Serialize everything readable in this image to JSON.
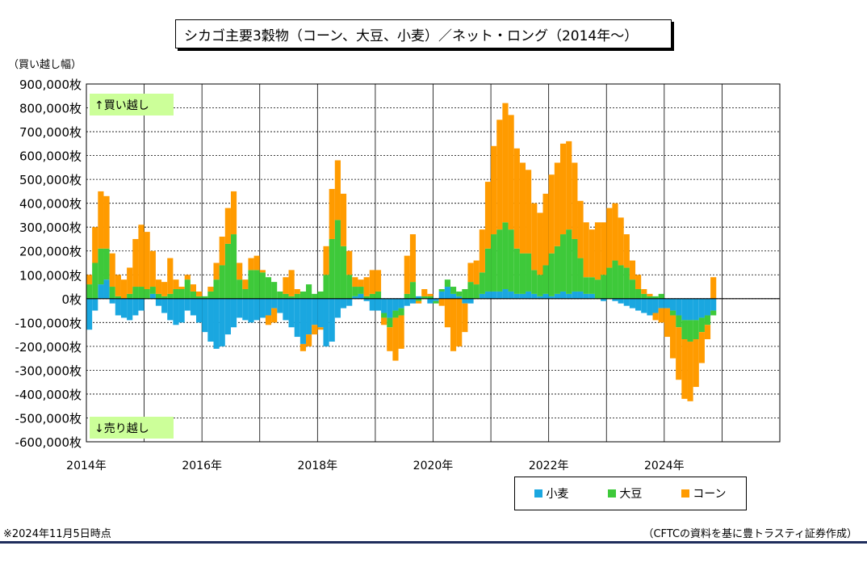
{
  "title": "シカゴ主要3穀物（コーン、大豆、小麦）／ネット・ロング（2014年～）",
  "footnote": "※2024年11月5日時点",
  "source": "（CFTCの資料を基に豊トラスティ証券作成）",
  "colors": {
    "wheat": "#1aa7e0",
    "soy": "#3ec93a",
    "corn": "#ff9b00",
    "annotation_bg": "#ccff99"
  },
  "chart_data": {
    "type": "area",
    "ylabel": "（買い越し幅）",
    "ylim": [
      -600000,
      900000
    ],
    "xlim": [
      2014.0,
      2026.0
    ],
    "yticks": [
      900000,
      800000,
      700000,
      600000,
      500000,
      400000,
      300000,
      200000,
      100000,
      0,
      -100000,
      -200000,
      -300000,
      -400000,
      -500000,
      -600000
    ],
    "ytick_labels": [
      "900,000枚",
      "800,000枚",
      "700,000枚",
      "600,000枚",
      "500,000枚",
      "400,000枚",
      "300,000枚",
      "200,000枚",
      "100,000枚",
      "0枚",
      "-100,000枚",
      "-200,000枚",
      "-300,000枚",
      "-400,000枚",
      "-500,000枚",
      "-600,000枚"
    ],
    "xticks": [
      2014,
      2016,
      2018,
      2020,
      2022,
      2024
    ],
    "xtick_labels": [
      "2014年",
      "2016年",
      "2018年",
      "2020年",
      "2022年",
      "2024年"
    ],
    "grid": true,
    "legend_position": "bottom-right",
    "annotations": [
      "↑買い越し",
      "↓売り越し"
    ],
    "x": [
      2014.0,
      2014.1,
      2014.2,
      2014.3,
      2014.4,
      2014.5,
      2014.6,
      2014.7,
      2014.8,
      2014.9,
      2015.0,
      2015.1,
      2015.2,
      2015.3,
      2015.4,
      2015.5,
      2015.6,
      2015.7,
      2015.8,
      2015.9,
      2016.0,
      2016.1,
      2016.2,
      2016.3,
      2016.4,
      2016.5,
      2016.6,
      2016.7,
      2016.8,
      2016.9,
      2017.0,
      2017.1,
      2017.2,
      2017.3,
      2017.4,
      2017.5,
      2017.6,
      2017.7,
      2017.8,
      2017.9,
      2018.0,
      2018.1,
      2018.2,
      2018.3,
      2018.4,
      2018.5,
      2018.6,
      2018.7,
      2018.8,
      2018.9,
      2019.0,
      2019.1,
      2019.2,
      2019.3,
      2019.4,
      2019.5,
      2019.6,
      2019.7,
      2019.8,
      2019.9,
      2020.0,
      2020.1,
      2020.2,
      2020.3,
      2020.4,
      2020.5,
      2020.6,
      2020.7,
      2020.8,
      2020.9,
      2021.0,
      2021.1,
      2021.2,
      2021.3,
      2021.4,
      2021.5,
      2021.6,
      2021.7,
      2021.8,
      2021.9,
      2022.0,
      2022.1,
      2022.2,
      2022.3,
      2022.4,
      2022.5,
      2022.6,
      2022.7,
      2022.8,
      2022.9,
      2023.0,
      2023.1,
      2023.2,
      2023.3,
      2023.4,
      2023.5,
      2023.6,
      2023.7,
      2023.8,
      2023.9,
      2024.0,
      2024.1,
      2024.2,
      2024.3,
      2024.4,
      2024.5,
      2024.6,
      2024.7,
      2024.8
    ],
    "series": [
      {
        "name": "小麦",
        "values": [
          -130000,
          -50000,
          60000,
          80000,
          -20000,
          -70000,
          -80000,
          -90000,
          -70000,
          -50000,
          0,
          20000,
          -30000,
          -60000,
          -90000,
          -110000,
          -100000,
          -50000,
          -70000,
          -100000,
          -140000,
          -180000,
          -210000,
          -200000,
          -150000,
          -120000,
          -80000,
          -90000,
          -100000,
          -90000,
          -80000,
          -70000,
          -40000,
          -60000,
          -90000,
          -120000,
          -160000,
          -190000,
          -150000,
          -110000,
          -120000,
          -200000,
          -180000,
          -80000,
          -40000,
          -30000,
          10000,
          20000,
          -10000,
          -50000,
          -50000,
          -60000,
          -80000,
          -50000,
          -40000,
          -30000,
          -20000,
          10000,
          0,
          -20000,
          -10000,
          30000,
          50000,
          20000,
          10000,
          -20000,
          -20000,
          0,
          20000,
          30000,
          30000,
          30000,
          40000,
          30000,
          20000,
          20000,
          30000,
          20000,
          10000,
          20000,
          10000,
          20000,
          30000,
          20000,
          30000,
          30000,
          20000,
          20000,
          0,
          -10000,
          0,
          -10000,
          -20000,
          -30000,
          -40000,
          -50000,
          -60000,
          -70000,
          -60000,
          -40000,
          -40000,
          -50000,
          -70000,
          -90000,
          -90000,
          -90000,
          -80000,
          -70000,
          -50000
        ]
      },
      {
        "name": "大豆",
        "values": [
          60000,
          150000,
          150000,
          130000,
          50000,
          10000,
          0,
          20000,
          50000,
          50000,
          40000,
          30000,
          20000,
          10000,
          20000,
          40000,
          40000,
          80000,
          30000,
          10000,
          10000,
          30000,
          80000,
          140000,
          230000,
          270000,
          80000,
          40000,
          120000,
          120000,
          110000,
          90000,
          70000,
          30000,
          20000,
          10000,
          20000,
          30000,
          60000,
          20000,
          30000,
          100000,
          250000,
          330000,
          220000,
          100000,
          40000,
          30000,
          10000,
          20000,
          30000,
          -20000,
          -40000,
          -30000,
          -30000,
          20000,
          70000,
          -10000,
          10000,
          10000,
          -10000,
          10000,
          30000,
          30000,
          20000,
          40000,
          70000,
          60000,
          90000,
          180000,
          240000,
          260000,
          280000,
          260000,
          190000,
          170000,
          160000,
          100000,
          90000,
          120000,
          180000,
          200000,
          240000,
          270000,
          220000,
          140000,
          70000,
          70000,
          80000,
          100000,
          130000,
          160000,
          140000,
          130000,
          80000,
          40000,
          20000,
          10000,
          10000,
          20000,
          0,
          -20000,
          -50000,
          -80000,
          -90000,
          -80000,
          -60000,
          -40000,
          -20000
        ]
      },
      {
        "name": "コーン",
        "values": [
          40000,
          150000,
          240000,
          220000,
          140000,
          90000,
          80000,
          110000,
          200000,
          260000,
          240000,
          150000,
          60000,
          60000,
          150000,
          40000,
          10000,
          20000,
          30000,
          20000,
          0,
          20000,
          70000,
          120000,
          150000,
          180000,
          70000,
          40000,
          50000,
          60000,
          10000,
          -40000,
          -60000,
          0,
          70000,
          110000,
          20000,
          -30000,
          -50000,
          -40000,
          -10000,
          120000,
          210000,
          250000,
          220000,
          100000,
          40000,
          30000,
          80000,
          100000,
          90000,
          -30000,
          -100000,
          -180000,
          -140000,
          160000,
          200000,
          -10000,
          30000,
          10000,
          0,
          -30000,
          -120000,
          -220000,
          -200000,
          -120000,
          80000,
          100000,
          180000,
          280000,
          370000,
          460000,
          500000,
          480000,
          420000,
          380000,
          350000,
          280000,
          260000,
          300000,
          330000,
          350000,
          380000,
          370000,
          320000,
          240000,
          230000,
          200000,
          240000,
          220000,
          250000,
          240000,
          200000,
          140000,
          80000,
          60000,
          20000,
          10000,
          -30000,
          -60000,
          -120000,
          -180000,
          -220000,
          -250000,
          -250000,
          -200000,
          -130000,
          -60000,
          90000
        ]
      }
    ]
  }
}
